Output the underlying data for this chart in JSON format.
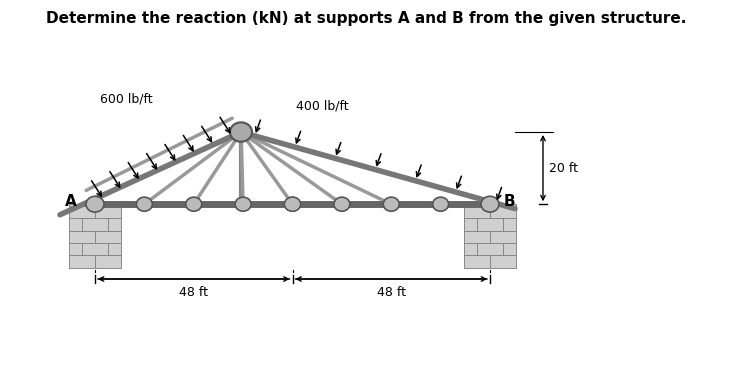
{
  "title": "Determine the reaction (kN) at supports A and B from the given structure.",
  "title_fontsize": 11,
  "title_fontweight": "bold",
  "bg_color": "#ffffff",
  "label_A": "A",
  "label_B": "B",
  "load_left": "600 lb/ft",
  "load_right": "400 lb/ft",
  "dim_height": "20 ft",
  "dim_span1": "48 ft",
  "dim_span2": "48 ft",
  "truss_gray": "#888888",
  "truss_light": "#bbbbbb",
  "brick_bg": "#c8c8c8",
  "brick_edge": "#777777"
}
